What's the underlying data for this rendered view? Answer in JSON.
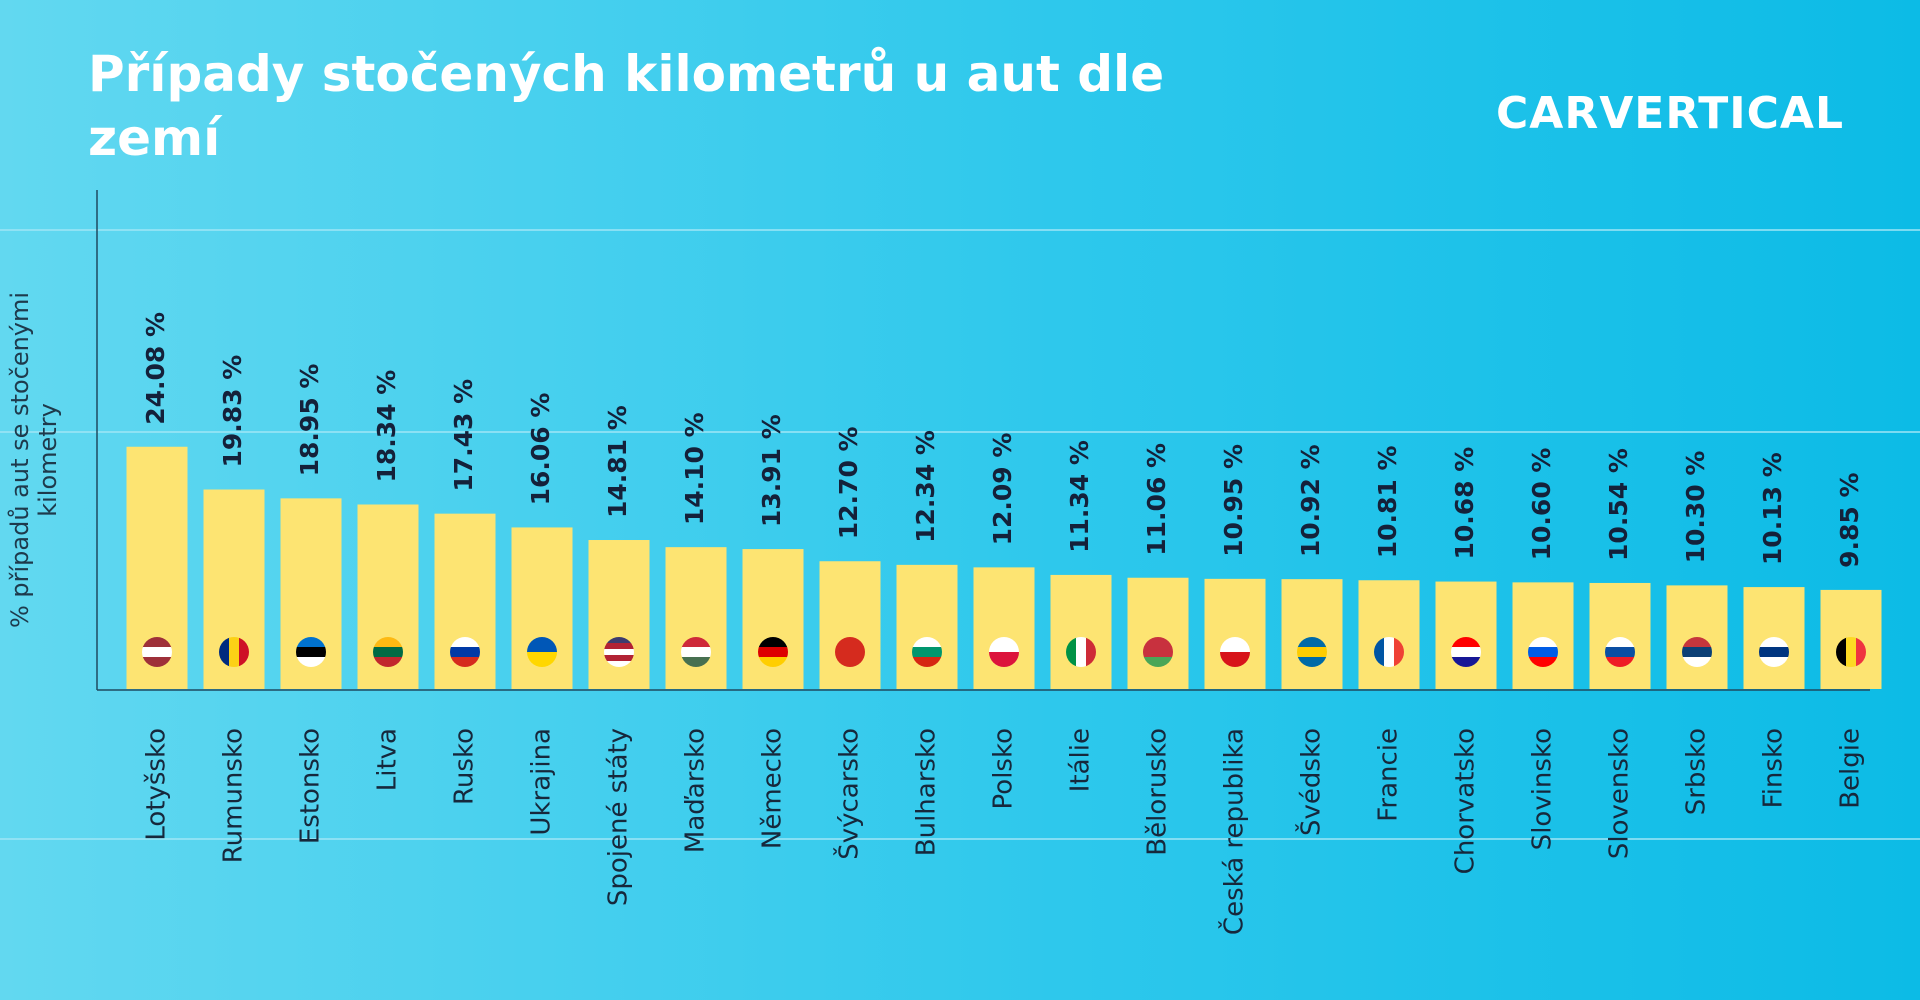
{
  "chart_data": {
    "type": "bar",
    "title": "Případy stočených kilometrů u aut dle zemí",
    "logo": "CARVERTICAL",
    "y_label": "% případů aut se stočenými kilometry",
    "categories": [
      "Lotyšsko",
      "Rumunsko",
      "Estonsko",
      "Litva",
      "Rusko",
      "Ukrajina",
      "Spojené státy",
      "Maďarsko",
      "Německo",
      "Švýcarsko",
      "Bulharsko",
      "Polsko",
      "Itálie",
      "Bělorusko",
      "Česká republika",
      "Švédsko",
      "Francie",
      "Chorvatsko",
      "Slovinsko",
      "Slovensko",
      "Srbsko",
      "Finsko",
      "Belgie"
    ],
    "values": [
      24.08,
      19.83,
      18.95,
      18.34,
      17.43,
      16.06,
      14.81,
      14.1,
      13.91,
      12.7,
      12.34,
      12.09,
      11.34,
      11.06,
      10.95,
      10.92,
      10.81,
      10.68,
      10.6,
      10.54,
      10.3,
      10.13,
      9.85
    ],
    "value_labels": [
      "24.08 %",
      "19.83 %",
      "18.95 %",
      "18.34 %",
      "17.43 %",
      "16.06 %",
      "14.81 %",
      "14.10 %",
      "13.91 %",
      "12.70 %",
      "12.34 %",
      "12.09 %",
      "11.34 %",
      "11.06 %",
      "10.95 %",
      "10.92 %",
      "10.81 %",
      "10.68 %",
      "10.60 %",
      "10.54 %",
      "10.30 %",
      "10.13 %",
      "9.85 %"
    ],
    "color": "#fde472",
    "ylim": [
      0,
      50
    ]
  }
}
